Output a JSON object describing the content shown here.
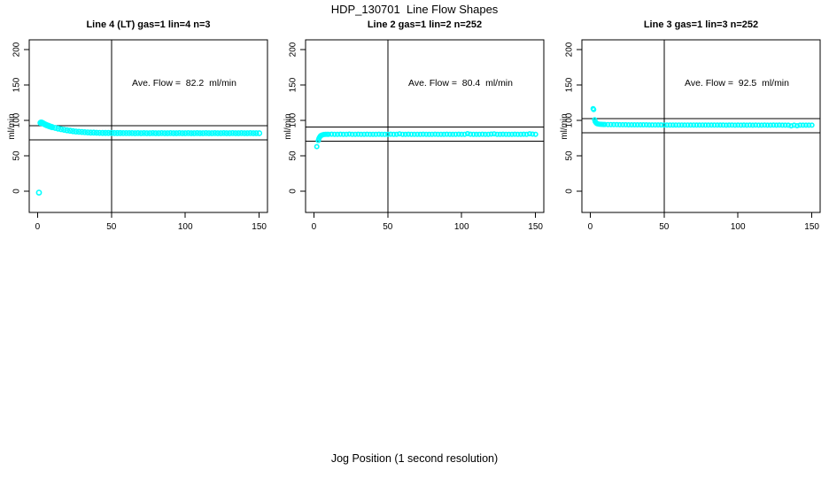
{
  "figure": {
    "title": "HDP_130701  Line Flow Shapes",
    "xlabel": "Jog Position (1 second resolution)",
    "colors": {
      "points": "#00ffff",
      "axis": "#000000",
      "background": "#ffffff"
    }
  },
  "chart_data": [
    {
      "type": "scatter",
      "title": "Line 2 gas=1 lin=2 n=252",
      "ylabel": "ml/min",
      "annotation": "Ave. Flow =  80.4  ml/min",
      "ave_flow_ml_min": 80.4,
      "n": 252,
      "xlim": [
        -5.6,
        155.6
      ],
      "ylim": [
        -30,
        213.75
      ],
      "xticks": [
        0,
        50,
        100,
        150
      ],
      "yticks": [
        0,
        50,
        100,
        150,
        200
      ],
      "vline_x": 50,
      "hlines_y": [
        90.4,
        70.4
      ],
      "marker_radius": 2.2,
      "points": [
        [
          2,
          63
        ],
        [
          3,
          71.5
        ],
        [
          3.4,
          74
        ],
        [
          3.8,
          76
        ],
        [
          4.2,
          77.3
        ],
        [
          4.6,
          78.2
        ],
        [
          5,
          78.8
        ],
        [
          5.5,
          79.3
        ],
        [
          6,
          79.7
        ],
        [
          7,
          80.1
        ],
        [
          8,
          80.3
        ],
        [
          9,
          80.4
        ],
        [
          10,
          80.3
        ],
        [
          12,
          80.5
        ],
        [
          14,
          80.4
        ],
        [
          16,
          80.2
        ],
        [
          18,
          80.5
        ],
        [
          20,
          80.3
        ],
        [
          22,
          80.4
        ],
        [
          24,
          80.6
        ],
        [
          26,
          80.3
        ],
        [
          28,
          80.4
        ],
        [
          30,
          80.5
        ],
        [
          32,
          80.2
        ],
        [
          34,
          80.4
        ],
        [
          36,
          80.5
        ],
        [
          38,
          80.3
        ],
        [
          40,
          80.4
        ],
        [
          42,
          80.2
        ],
        [
          44,
          80.5
        ],
        [
          46,
          80.4
        ],
        [
          48,
          80.3
        ],
        [
          50,
          80.4
        ],
        [
          52,
          80.5
        ],
        [
          54,
          80.3
        ],
        [
          56,
          80.4
        ],
        [
          58,
          81
        ],
        [
          60,
          80.4
        ],
        [
          62,
          80.3
        ],
        [
          64,
          80.5
        ],
        [
          66,
          80.4
        ],
        [
          68,
          80.2
        ],
        [
          70,
          80.4
        ],
        [
          72,
          80.3
        ],
        [
          74,
          80.5
        ],
        [
          76,
          80.4
        ],
        [
          78,
          80.3
        ],
        [
          80,
          80.4
        ],
        [
          82,
          80.5
        ],
        [
          84,
          80.2
        ],
        [
          86,
          80.4
        ],
        [
          88,
          80.3
        ],
        [
          90,
          80.5
        ],
        [
          92,
          80.4
        ],
        [
          94,
          80.3
        ],
        [
          96,
          80.4
        ],
        [
          98,
          80.5
        ],
        [
          100,
          80.3
        ],
        [
          102,
          80.4
        ],
        [
          104,
          81.2
        ],
        [
          106,
          80.5
        ],
        [
          108,
          80.4
        ],
        [
          110,
          80.3
        ],
        [
          112,
          80.4
        ],
        [
          114,
          80.5
        ],
        [
          116,
          80.3
        ],
        [
          118,
          80.4
        ],
        [
          120,
          80.6
        ],
        [
          122,
          81
        ],
        [
          124,
          80.4
        ],
        [
          126,
          80.3
        ],
        [
          128,
          80.5
        ],
        [
          130,
          80.4
        ],
        [
          132,
          80.3
        ],
        [
          134,
          80.4
        ],
        [
          136,
          80.5
        ],
        [
          138,
          80.3
        ],
        [
          140,
          80.4
        ],
        [
          142,
          80.5
        ],
        [
          144,
          80.3
        ],
        [
          146,
          81.1
        ],
        [
          148,
          80.6
        ],
        [
          150,
          80.4
        ]
      ]
    },
    {
      "type": "scatter",
      "title": "Line 3 gas=1 lin=3 n=252",
      "ylabel": "ml/min",
      "annotation": "Ave. Flow =  92.5  ml/min",
      "ave_flow_ml_min": 92.5,
      "n": 252,
      "xlim": [
        -5.6,
        155.6
      ],
      "ylim": [
        -30,
        213.75
      ],
      "xticks": [
        0,
        50,
        100,
        150
      ],
      "yticks": [
        0,
        50,
        100,
        150,
        200
      ],
      "vline_x": 50,
      "hlines_y": [
        102.5,
        82.5
      ],
      "marker_radius": 2.2,
      "points": [
        [
          2,
          116.5
        ],
        [
          2.4,
          115.3
        ],
        [
          3,
          101
        ],
        [
          3.4,
          98.5
        ],
        [
          3.8,
          97
        ],
        [
          4.2,
          96.1
        ],
        [
          4.6,
          95.5
        ],
        [
          5,
          95.1
        ],
        [
          6,
          94.7
        ],
        [
          7,
          94.5
        ],
        [
          8,
          94.4
        ],
        [
          9,
          94.3
        ],
        [
          10,
          94.2
        ],
        [
          12,
          94.1
        ],
        [
          14,
          94.1
        ],
        [
          16,
          94
        ],
        [
          18,
          94
        ],
        [
          20,
          93.9
        ],
        [
          22,
          93.9
        ],
        [
          24,
          93.9
        ],
        [
          26,
          93.8
        ],
        [
          28,
          93.8
        ],
        [
          30,
          93.8
        ],
        [
          32,
          93.7
        ],
        [
          34,
          93.7
        ],
        [
          36,
          93.7
        ],
        [
          38,
          93.7
        ],
        [
          40,
          93.6
        ],
        [
          42,
          93.6
        ],
        [
          44,
          93.6
        ],
        [
          46,
          93.6
        ],
        [
          48,
          93.6
        ],
        [
          50,
          93.5
        ],
        [
          52,
          93.5
        ],
        [
          54,
          93.5
        ],
        [
          56,
          93.5
        ],
        [
          58,
          93.5
        ],
        [
          60,
          93.5
        ],
        [
          62,
          93.5
        ],
        [
          64,
          93.4
        ],
        [
          66,
          93.5
        ],
        [
          68,
          93.4
        ],
        [
          70,
          93.5
        ],
        [
          72,
          93.4
        ],
        [
          74,
          93.4
        ],
        [
          76,
          93.5
        ],
        [
          78,
          93.4
        ],
        [
          80,
          93.4
        ],
        [
          82,
          93.4
        ],
        [
          84,
          93.4
        ],
        [
          86,
          93.4
        ],
        [
          88,
          93.4
        ],
        [
          90,
          93.4
        ],
        [
          92,
          93.3
        ],
        [
          94,
          93.4
        ],
        [
          96,
          93.4
        ],
        [
          98,
          93.3
        ],
        [
          100,
          93.4
        ],
        [
          102,
          93.3
        ],
        [
          104,
          93.4
        ],
        [
          106,
          93.3
        ],
        [
          108,
          93.4
        ],
        [
          110,
          93.3
        ],
        [
          112,
          93.4
        ],
        [
          114,
          93.3
        ],
        [
          116,
          93.3
        ],
        [
          118,
          93.4
        ],
        [
          120,
          93.3
        ],
        [
          122,
          93.3
        ],
        [
          124,
          93.4
        ],
        [
          126,
          93.3
        ],
        [
          128,
          93.4
        ],
        [
          130,
          93.3
        ],
        [
          132,
          93.2
        ],
        [
          134,
          93.3
        ],
        [
          136,
          92.4
        ],
        [
          138,
          93.3
        ],
        [
          140,
          92.5
        ],
        [
          142,
          93.3
        ],
        [
          144,
          93.2
        ],
        [
          146,
          93.3
        ],
        [
          148,
          93.2
        ],
        [
          150,
          93.3
        ]
      ]
    },
    {
      "type": "scatter",
      "title": "Line 4 (LT) gas=1 lin=4 n=3",
      "ylabel": "ml/min",
      "annotation": "Ave. Flow =  82.2  ml/min",
      "ave_flow_ml_min": 82.2,
      "n": 3,
      "xlim": [
        -5.6,
        155.6
      ],
      "ylim": [
        -30,
        213.75
      ],
      "xticks": [
        0,
        50,
        100,
        150
      ],
      "yticks": [
        0,
        50,
        100,
        150,
        200
      ],
      "vline_x": 50,
      "hlines_y": [
        92.2,
        72.2
      ],
      "marker_radius": 2.6,
      "points": [
        [
          1,
          -2
        ],
        [
          2,
          96.5
        ],
        [
          2.4,
          97
        ],
        [
          2.8,
          96.9
        ],
        [
          3.2,
          96.5
        ],
        [
          3.6,
          96
        ],
        [
          4,
          95.5
        ],
        [
          4.5,
          94.9
        ],
        [
          5,
          94.4
        ],
        [
          5.5,
          93.9
        ],
        [
          6,
          93.4
        ],
        [
          6.5,
          93
        ],
        [
          7,
          92.6
        ],
        [
          7.5,
          92.2
        ],
        [
          8,
          91.8
        ],
        [
          8.5,
          91.4
        ],
        [
          9,
          91.1
        ],
        [
          9.5,
          90.8
        ],
        [
          10,
          90.4
        ],
        [
          12,
          89.4
        ],
        [
          14,
          88.4
        ],
        [
          16,
          87.5
        ],
        [
          18,
          86.7
        ],
        [
          20,
          86
        ],
        [
          22,
          85.4
        ],
        [
          24,
          84.8
        ],
        [
          26,
          84.3
        ],
        [
          28,
          83.9
        ],
        [
          30,
          83.6
        ],
        [
          32,
          83.3
        ],
        [
          34,
          83
        ],
        [
          36,
          82.8
        ],
        [
          38,
          82.7
        ],
        [
          40,
          82.5
        ],
        [
          42,
          82.4
        ],
        [
          44,
          82.3
        ],
        [
          46,
          82.3
        ],
        [
          48,
          82.2
        ],
        [
          50,
          82.2
        ],
        [
          52,
          82.1
        ],
        [
          54,
          82.1
        ],
        [
          56,
          82.1
        ],
        [
          58,
          82
        ],
        [
          60,
          82
        ],
        [
          62,
          82
        ],
        [
          64,
          82
        ],
        [
          66,
          81.9
        ],
        [
          68,
          82
        ],
        [
          70,
          81.9
        ],
        [
          72,
          82
        ],
        [
          74,
          81.9
        ],
        [
          76,
          81.9
        ],
        [
          78,
          82
        ],
        [
          80,
          81.9
        ],
        [
          82,
          81.9
        ],
        [
          84,
          82
        ],
        [
          86,
          81.9
        ],
        [
          88,
          81.9
        ],
        [
          90,
          82
        ],
        [
          92,
          81.9
        ],
        [
          94,
          81.9
        ],
        [
          96,
          82
        ],
        [
          98,
          81.9
        ],
        [
          100,
          81.9
        ],
        [
          102,
          82
        ],
        [
          104,
          81.9
        ],
        [
          106,
          81.9
        ],
        [
          108,
          82
        ],
        [
          110,
          81.9
        ],
        [
          112,
          81.9
        ],
        [
          114,
          82
        ],
        [
          116,
          81.9
        ],
        [
          118,
          81.9
        ],
        [
          120,
          82
        ],
        [
          122,
          81.9
        ],
        [
          124,
          81.9
        ],
        [
          126,
          82
        ],
        [
          128,
          81.9
        ],
        [
          130,
          81.9
        ],
        [
          132,
          82
        ],
        [
          134,
          81.9
        ],
        [
          136,
          81.9
        ],
        [
          138,
          82
        ],
        [
          140,
          81.9
        ],
        [
          142,
          81.9
        ],
        [
          144,
          82
        ],
        [
          146,
          81.9
        ],
        [
          148,
          81.9
        ],
        [
          150,
          81.9
        ]
      ]
    }
  ]
}
